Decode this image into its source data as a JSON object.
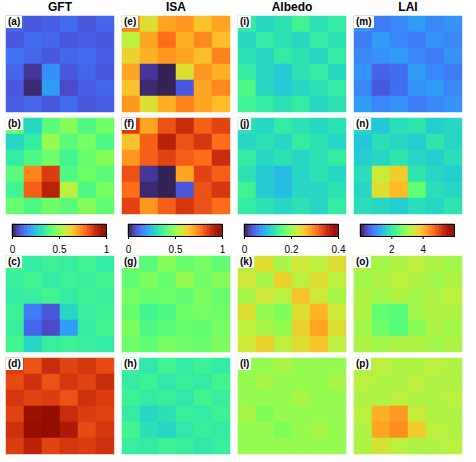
{
  "chart_data": {
    "type": "heatmap",
    "columns": [
      {
        "title": "GFT",
        "colorbar": {
          "range": [
            0,
            1
          ],
          "ticks": [
            0,
            0.5,
            1
          ]
        },
        "panels": [
          {
            "label": "(a)",
            "cells": [
              [
                0.12,
                0.1,
                0.11,
                0.13,
                0.1,
                0.12
              ],
              [
                0.1,
                0.13,
                0.12,
                0.1,
                0.11,
                0.1
              ],
              [
                0.14,
                0.12,
                0.1,
                0.12,
                0.13,
                0.11
              ],
              [
                0.12,
                0.05,
                0.18,
                0.1,
                0.12,
                0.1
              ],
              [
                0.1,
                0.03,
                0.2,
                0.08,
                0.11,
                0.12
              ],
              [
                0.11,
                0.12,
                0.1,
                0.13,
                0.1,
                0.11
              ]
            ]
          },
          {
            "label": "(b)",
            "cells": [
              [
                0.45,
                0.3,
                0.42,
                0.48,
                0.4,
                0.45
              ],
              [
                0.3,
                0.35,
                0.5,
                0.42,
                0.46,
                0.4
              ],
              [
                0.35,
                0.4,
                0.45,
                0.38,
                0.44,
                0.48
              ],
              [
                0.42,
                0.75,
                0.85,
                0.4,
                0.45,
                0.42
              ],
              [
                0.38,
                0.8,
                0.9,
                0.55,
                0.4,
                0.46
              ],
              [
                0.44,
                0.4,
                0.45,
                0.42,
                0.48,
                0.43
              ]
            ]
          },
          {
            "label": "(c)",
            "cells": [
              [
                0.38,
                0.35,
                0.37,
                0.36,
                0.38,
                0.35
              ],
              [
                0.36,
                0.38,
                0.35,
                0.37,
                0.36,
                0.38
              ],
              [
                0.35,
                0.36,
                0.38,
                0.35,
                0.37,
                0.36
              ],
              [
                0.37,
                0.15,
                0.1,
                0.3,
                0.36,
                0.37
              ],
              [
                0.36,
                0.12,
                0.08,
                0.2,
                0.35,
                0.38
              ],
              [
                0.38,
                0.3,
                0.36,
                0.37,
                0.36,
                0.35
              ]
            ]
          },
          {
            "label": "(d)",
            "cells": [
              [
                0.85,
                0.82,
                0.88,
                0.84,
                0.86,
                0.83
              ],
              [
                0.83,
                0.87,
                0.82,
                0.86,
                0.84,
                0.88
              ],
              [
                0.86,
                0.84,
                0.85,
                0.82,
                0.87,
                0.85
              ],
              [
                0.84,
                0.95,
                0.97,
                0.88,
                0.85,
                0.84
              ],
              [
                0.87,
                0.96,
                0.98,
                0.92,
                0.83,
                0.86
              ],
              [
                0.85,
                0.9,
                0.84,
                0.86,
                0.85,
                0.87
              ]
            ]
          }
        ]
      },
      {
        "title": "ISA",
        "colorbar": {
          "range": [
            0,
            1
          ],
          "ticks": [
            0,
            0.5,
            1
          ]
        },
        "panels": [
          {
            "label": "(e)",
            "cells": [
              [
                0.75,
                0.6,
                0.7,
                0.72,
                0.65,
                0.7
              ],
              [
                0.55,
                0.7,
                0.78,
                0.68,
                0.74,
                0.66
              ],
              [
                0.62,
                0.68,
                0.72,
                0.7,
                0.66,
                0.75
              ],
              [
                0.7,
                0.05,
                0.02,
                0.6,
                0.72,
                0.68
              ],
              [
                0.65,
                0.03,
                0.02,
                0.1,
                0.7,
                0.74
              ],
              [
                0.72,
                0.6,
                0.68,
                0.75,
                0.7,
                0.66
              ]
            ]
          },
          {
            "label": "(f)",
            "cells": [
              [
                0.85,
                0.7,
                0.82,
                0.88,
                0.8,
                0.84
              ],
              [
                0.65,
                0.8,
                0.9,
                0.82,
                0.86,
                0.78
              ],
              [
                0.72,
                0.8,
                0.84,
                0.8,
                0.78,
                0.88
              ],
              [
                0.82,
                0.05,
                0.02,
                0.7,
                0.84,
                0.8
              ],
              [
                0.78,
                0.03,
                0.02,
                0.1,
                0.82,
                0.86
              ],
              [
                0.84,
                0.72,
                0.8,
                0.86,
                0.82,
                0.78
              ]
            ]
          },
          {
            "label": "(g)",
            "cells": [
              [
                0.45,
                0.42,
                0.48,
                0.44,
                0.46,
                0.43
              ],
              [
                0.43,
                0.47,
                0.44,
                0.5,
                0.45,
                0.48
              ],
              [
                0.46,
                0.44,
                0.45,
                0.43,
                0.47,
                0.44
              ],
              [
                0.44,
                0.38,
                0.4,
                0.45,
                0.46,
                0.45
              ],
              [
                0.47,
                0.4,
                0.42,
                0.44,
                0.43,
                0.46
              ],
              [
                0.45,
                0.43,
                0.46,
                0.45,
                0.44,
                0.47
              ]
            ]
          },
          {
            "label": "(h)",
            "cells": [
              [
                0.36,
                0.34,
                0.38,
                0.35,
                0.37,
                0.35
              ],
              [
                0.35,
                0.37,
                0.34,
                0.36,
                0.35,
                0.38
              ],
              [
                0.37,
                0.35,
                0.36,
                0.34,
                0.38,
                0.36
              ],
              [
                0.35,
                0.3,
                0.32,
                0.36,
                0.35,
                0.37
              ],
              [
                0.38,
                0.32,
                0.3,
                0.34,
                0.36,
                0.35
              ],
              [
                0.36,
                0.35,
                0.37,
                0.36,
                0.34,
                0.36
              ]
            ]
          }
        ]
      },
      {
        "title": "Albedo",
        "colorbar": {
          "range": [
            0,
            0.4
          ],
          "ticks": [
            0,
            0.2,
            0.4
          ]
        },
        "panels": [
          {
            "label": "(i)",
            "cells": [
              [
                0.14,
                0.12,
                0.13,
                0.15,
                0.13,
                0.14
              ],
              [
                0.12,
                0.14,
                0.13,
                0.12,
                0.14,
                0.13
              ],
              [
                0.13,
                0.12,
                0.14,
                0.13,
                0.12,
                0.14
              ],
              [
                0.14,
                0.12,
                0.11,
                0.13,
                0.14,
                0.12
              ],
              [
                0.16,
                0.12,
                0.11,
                0.12,
                0.13,
                0.14
              ],
              [
                0.15,
                0.14,
                0.13,
                0.14,
                0.12,
                0.13
              ]
            ]
          },
          {
            "label": "(j)",
            "cells": [
              [
                0.13,
                0.12,
                0.14,
                0.13,
                0.12,
                0.13
              ],
              [
                0.12,
                0.13,
                0.12,
                0.14,
                0.13,
                0.12
              ],
              [
                0.14,
                0.12,
                0.13,
                0.12,
                0.13,
                0.14
              ],
              [
                0.13,
                0.11,
                0.1,
                0.12,
                0.13,
                0.12
              ],
              [
                0.15,
                0.11,
                0.1,
                0.12,
                0.12,
                0.13
              ],
              [
                0.14,
                0.13,
                0.12,
                0.13,
                0.12,
                0.14
              ]
            ]
          },
          {
            "label": "(k)",
            "cells": [
              [
                0.22,
                0.24,
                0.21,
                0.23,
                0.22,
                0.24
              ],
              [
                0.23,
                0.21,
                0.25,
                0.22,
                0.24,
                0.22
              ],
              [
                0.21,
                0.23,
                0.22,
                0.26,
                0.23,
                0.21
              ],
              [
                0.24,
                0.2,
                0.19,
                0.24,
                0.27,
                0.23
              ],
              [
                0.22,
                0.21,
                0.2,
                0.25,
                0.28,
                0.24
              ],
              [
                0.23,
                0.25,
                0.22,
                0.24,
                0.26,
                0.22
              ]
            ]
          },
          {
            "label": "(l)",
            "cells": [
              [
                0.2,
                0.2,
                0.21,
                0.2,
                0.2,
                0.2
              ],
              [
                0.2,
                0.21,
                0.2,
                0.2,
                0.2,
                0.21
              ],
              [
                0.2,
                0.2,
                0.2,
                0.21,
                0.2,
                0.2
              ],
              [
                0.21,
                0.19,
                0.2,
                0.2,
                0.2,
                0.2
              ],
              [
                0.2,
                0.2,
                0.19,
                0.2,
                0.21,
                0.2
              ],
              [
                0.2,
                0.2,
                0.2,
                0.2,
                0.2,
                0.2
              ]
            ]
          }
        ]
      },
      {
        "title": "LAI",
        "colorbar": {
          "range": [
            0,
            6
          ],
          "ticks": [
            2,
            4
          ]
        },
        "panels": [
          {
            "label": "(m)",
            "cells": [
              [
                1.1,
                0.9,
                1.0,
                1.2,
                1.0,
                1.1
              ],
              [
                0.9,
                1.2,
                1.0,
                0.9,
                1.1,
                1.0
              ],
              [
                1.0,
                1.1,
                1.2,
                1.0,
                0.9,
                1.1
              ],
              [
                1.1,
                0.7,
                0.8,
                1.2,
                1.0,
                0.9
              ],
              [
                1.0,
                0.6,
                0.8,
                1.1,
                1.2,
                1.0
              ],
              [
                1.2,
                1.0,
                1.1,
                0.9,
                1.0,
                1.1
              ]
            ]
          },
          {
            "label": "(n)",
            "cells": [
              [
                1.8,
                1.6,
                1.9,
                2.0,
                1.7,
                1.8
              ],
              [
                1.6,
                1.9,
                1.8,
                1.7,
                2.0,
                1.8
              ],
              [
                1.7,
                1.8,
                2.0,
                1.8,
                1.7,
                1.9
              ],
              [
                1.9,
                3.4,
                3.8,
                2.0,
                1.8,
                1.7
              ],
              [
                1.8,
                3.6,
                4.0,
                2.6,
                1.9,
                1.8
              ],
              [
                1.9,
                1.8,
                1.7,
                1.9,
                1.8,
                2.0
              ]
            ]
          },
          {
            "label": "(o)",
            "cells": [
              [
                3.2,
                3.1,
                3.2,
                3.3,
                3.2,
                3.1
              ],
              [
                3.1,
                3.2,
                3.3,
                3.2,
                3.1,
                3.2
              ],
              [
                3.2,
                3.1,
                3.2,
                3.1,
                3.2,
                3.3
              ],
              [
                3.2,
                2.6,
                2.5,
                3.1,
                3.2,
                3.2
              ],
              [
                3.1,
                2.7,
                2.5,
                2.9,
                3.2,
                3.1
              ],
              [
                3.2,
                3.1,
                3.2,
                3.2,
                3.1,
                3.2
              ]
            ]
          },
          {
            "label": "(p)",
            "cells": [
              [
                3.2,
                3.3,
                3.2,
                3.2,
                3.3,
                3.2
              ],
              [
                3.3,
                3.2,
                3.2,
                3.3,
                3.2,
                3.2
              ],
              [
                3.2,
                3.2,
                3.3,
                3.2,
                3.2,
                3.3
              ],
              [
                3.3,
                4.1,
                4.3,
                3.4,
                3.2,
                3.2
              ],
              [
                3.2,
                4.2,
                4.4,
                3.8,
                3.3,
                3.2
              ],
              [
                3.2,
                3.5,
                3.3,
                3.2,
                3.2,
                3.3
              ]
            ]
          }
        ]
      }
    ]
  }
}
